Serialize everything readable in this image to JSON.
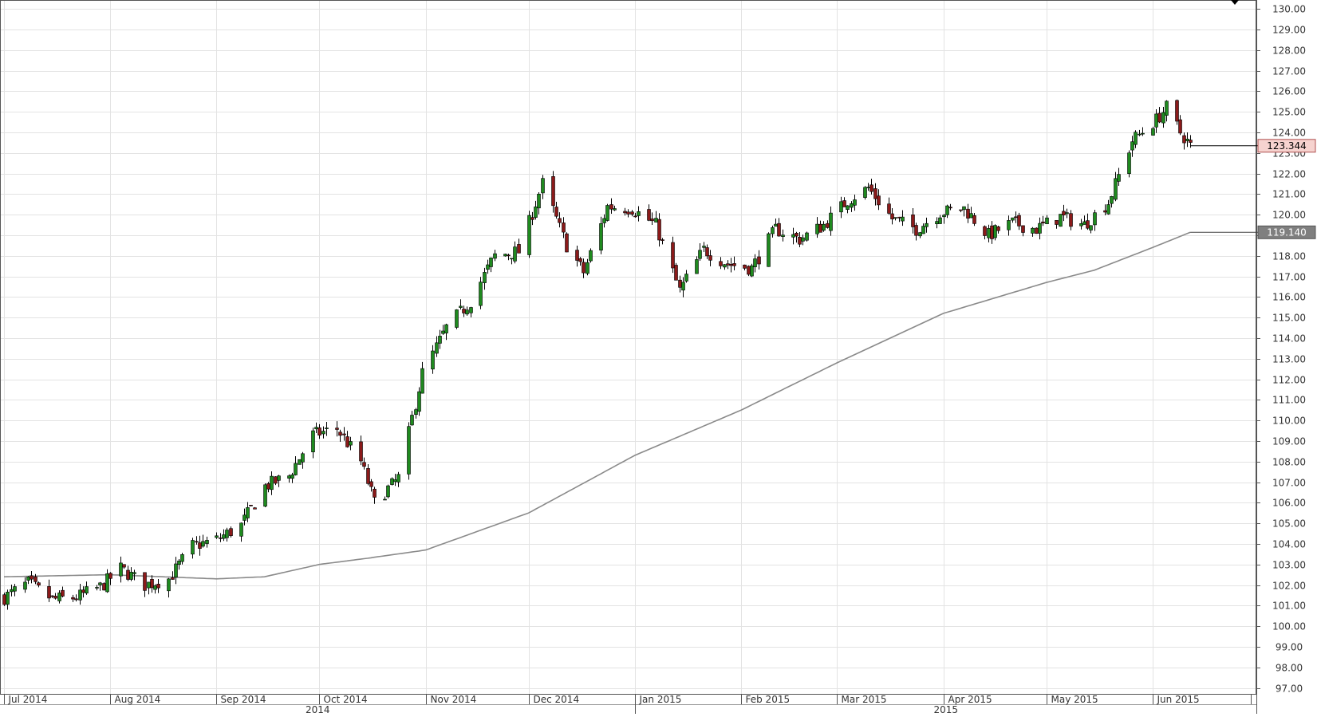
{
  "chart_data": {
    "type": "candlestick",
    "title": "",
    "xlabel": "",
    "ylabel": "",
    "ylim": [
      96.5,
      130.5
    ],
    "grid": true,
    "y_ticks": [
      "97.00",
      "98.00",
      "99.00",
      "100.00",
      "101.00",
      "102.00",
      "103.00",
      "104.00",
      "105.00",
      "106.00",
      "107.00",
      "108.00",
      "109.00",
      "110.00",
      "111.00",
      "112.00",
      "113.00",
      "114.00",
      "115.00",
      "116.00",
      "117.00",
      "118.00",
      "119.00",
      "120.00",
      "121.00",
      "122.00",
      "123.00",
      "124.00",
      "125.00",
      "126.00",
      "127.00",
      "128.00",
      "129.00",
      "130.00"
    ],
    "x_months": [
      "Jul 2014",
      "Aug 2014",
      "Sep 2014",
      "Oct 2014",
      "Nov 2014",
      "Dec 2014",
      "Jan 2015",
      "Feb 2015",
      "Mar 2015",
      "Apr 2015",
      "May 2015",
      "Jun 2015"
    ],
    "x_years": [
      "2014",
      "2015"
    ],
    "last_price": "123.344",
    "moving_average_last": "119.140",
    "price_series_waypoints": [
      {
        "date": "2014-07-01",
        "close": 101.4
      },
      {
        "date": "2014-07-08",
        "close": 102.1
      },
      {
        "date": "2014-07-15",
        "close": 101.3
      },
      {
        "date": "2014-07-22",
        "close": 101.4
      },
      {
        "date": "2014-07-29",
        "close": 101.9
      },
      {
        "date": "2014-08-04",
        "close": 102.8
      },
      {
        "date": "2014-08-11",
        "close": 102.0
      },
      {
        "date": "2014-08-18",
        "close": 102.3
      },
      {
        "date": "2014-08-25",
        "close": 103.9
      },
      {
        "date": "2014-09-01",
        "close": 104.2
      },
      {
        "date": "2014-09-08",
        "close": 104.9
      },
      {
        "date": "2014-09-15",
        "close": 106.8
      },
      {
        "date": "2014-09-22",
        "close": 107.3
      },
      {
        "date": "2014-09-29",
        "close": 109.3
      },
      {
        "date": "2014-10-06",
        "close": 109.6
      },
      {
        "date": "2014-10-13",
        "close": 108.0
      },
      {
        "date": "2014-10-17",
        "close": 106.0
      },
      {
        "date": "2014-10-24",
        "close": 107.2
      },
      {
        "date": "2014-10-31",
        "close": 112.3
      },
      {
        "date": "2014-11-07",
        "close": 114.5
      },
      {
        "date": "2014-11-14",
        "close": 115.8
      },
      {
        "date": "2014-11-21",
        "close": 118.0
      },
      {
        "date": "2014-11-28",
        "close": 118.2
      },
      {
        "date": "2014-12-05",
        "close": 121.5
      },
      {
        "date": "2014-12-12",
        "close": 118.5
      },
      {
        "date": "2014-12-17",
        "close": 117.2
      },
      {
        "date": "2014-12-24",
        "close": 120.4
      },
      {
        "date": "2014-12-31",
        "close": 120.3
      },
      {
        "date": "2015-01-07",
        "close": 119.5
      },
      {
        "date": "2015-01-14",
        "close": 116.3
      },
      {
        "date": "2015-01-21",
        "close": 118.3
      },
      {
        "date": "2015-01-28",
        "close": 117.6
      },
      {
        "date": "2015-02-04",
        "close": 117.4
      },
      {
        "date": "2015-02-11",
        "close": 119.3
      },
      {
        "date": "2015-02-18",
        "close": 118.8
      },
      {
        "date": "2015-02-25",
        "close": 119.5
      },
      {
        "date": "2015-03-04",
        "close": 120.7
      },
      {
        "date": "2015-03-10",
        "close": 121.3
      },
      {
        "date": "2015-03-17",
        "close": 119.8
      },
      {
        "date": "2015-03-24",
        "close": 119.3
      },
      {
        "date": "2015-03-31",
        "close": 120.1
      },
      {
        "date": "2015-04-07",
        "close": 120.3
      },
      {
        "date": "2015-04-14",
        "close": 119.0
      },
      {
        "date": "2015-04-21",
        "close": 119.6
      },
      {
        "date": "2015-04-28",
        "close": 119.3
      },
      {
        "date": "2015-05-05",
        "close": 119.9
      },
      {
        "date": "2015-05-12",
        "close": 119.5
      },
      {
        "date": "2015-05-19",
        "close": 120.6
      },
      {
        "date": "2015-05-26",
        "close": 123.6
      },
      {
        "date": "2015-06-02",
        "close": 124.6
      },
      {
        "date": "2015-06-05",
        "close": 125.2
      },
      {
        "date": "2015-06-09",
        "close": 124.0
      },
      {
        "date": "2015-06-12",
        "close": 123.344
      }
    ],
    "moving_average_waypoints": [
      {
        "date": "2014-07-01",
        "value": 102.4
      },
      {
        "date": "2014-08-01",
        "value": 102.5
      },
      {
        "date": "2014-09-01",
        "value": 102.3
      },
      {
        "date": "2014-09-15",
        "value": 102.4
      },
      {
        "date": "2014-10-01",
        "value": 103.0
      },
      {
        "date": "2014-10-15",
        "value": 103.3
      },
      {
        "date": "2014-11-01",
        "value": 103.7
      },
      {
        "date": "2014-12-01",
        "value": 105.5
      },
      {
        "date": "2015-01-01",
        "value": 108.3
      },
      {
        "date": "2015-02-01",
        "value": 110.5
      },
      {
        "date": "2015-03-01",
        "value": 112.8
      },
      {
        "date": "2015-04-01",
        "value": 115.2
      },
      {
        "date": "2015-05-01",
        "value": 116.7
      },
      {
        "date": "2015-05-15",
        "value": 117.3
      },
      {
        "date": "2015-06-01",
        "value": 118.4
      },
      {
        "date": "2015-06-12",
        "value": 119.14
      }
    ]
  }
}
